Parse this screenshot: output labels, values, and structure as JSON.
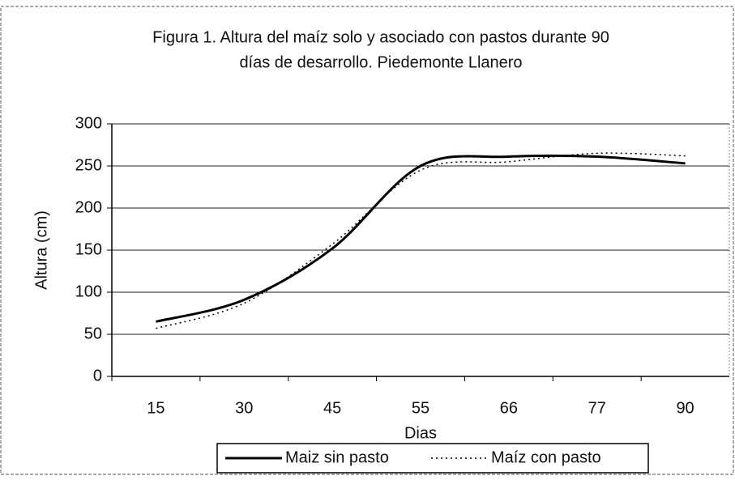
{
  "chart_data": {
    "type": "line",
    "title": [
      "Figura 1. Altura del maíz solo y asociado con pastos durante 90",
      "días de desarrollo. Piedemonte Llanero"
    ],
    "x_label": "Dias",
    "y_label": "Altura (cm)",
    "categories": [
      "15",
      "30",
      "45",
      "55",
      "66",
      "77",
      "90"
    ],
    "series": [
      {
        "name": "Maiz sin pasto",
        "color": "#000000",
        "dash": "solid",
        "values": [
          65,
          91,
          152,
          250,
          261,
          261,
          253
        ]
      },
      {
        "name": "Maíz con pasto",
        "color": "#000000",
        "dash": "dotted",
        "values": [
          57,
          87,
          157,
          245,
          255,
          265,
          262
        ]
      }
    ],
    "ylim": [
      0,
      300
    ],
    "yticks": [
      0,
      50,
      100,
      150,
      200,
      250,
      300
    ],
    "grid": true,
    "smooth": true,
    "legend": "bottom"
  }
}
